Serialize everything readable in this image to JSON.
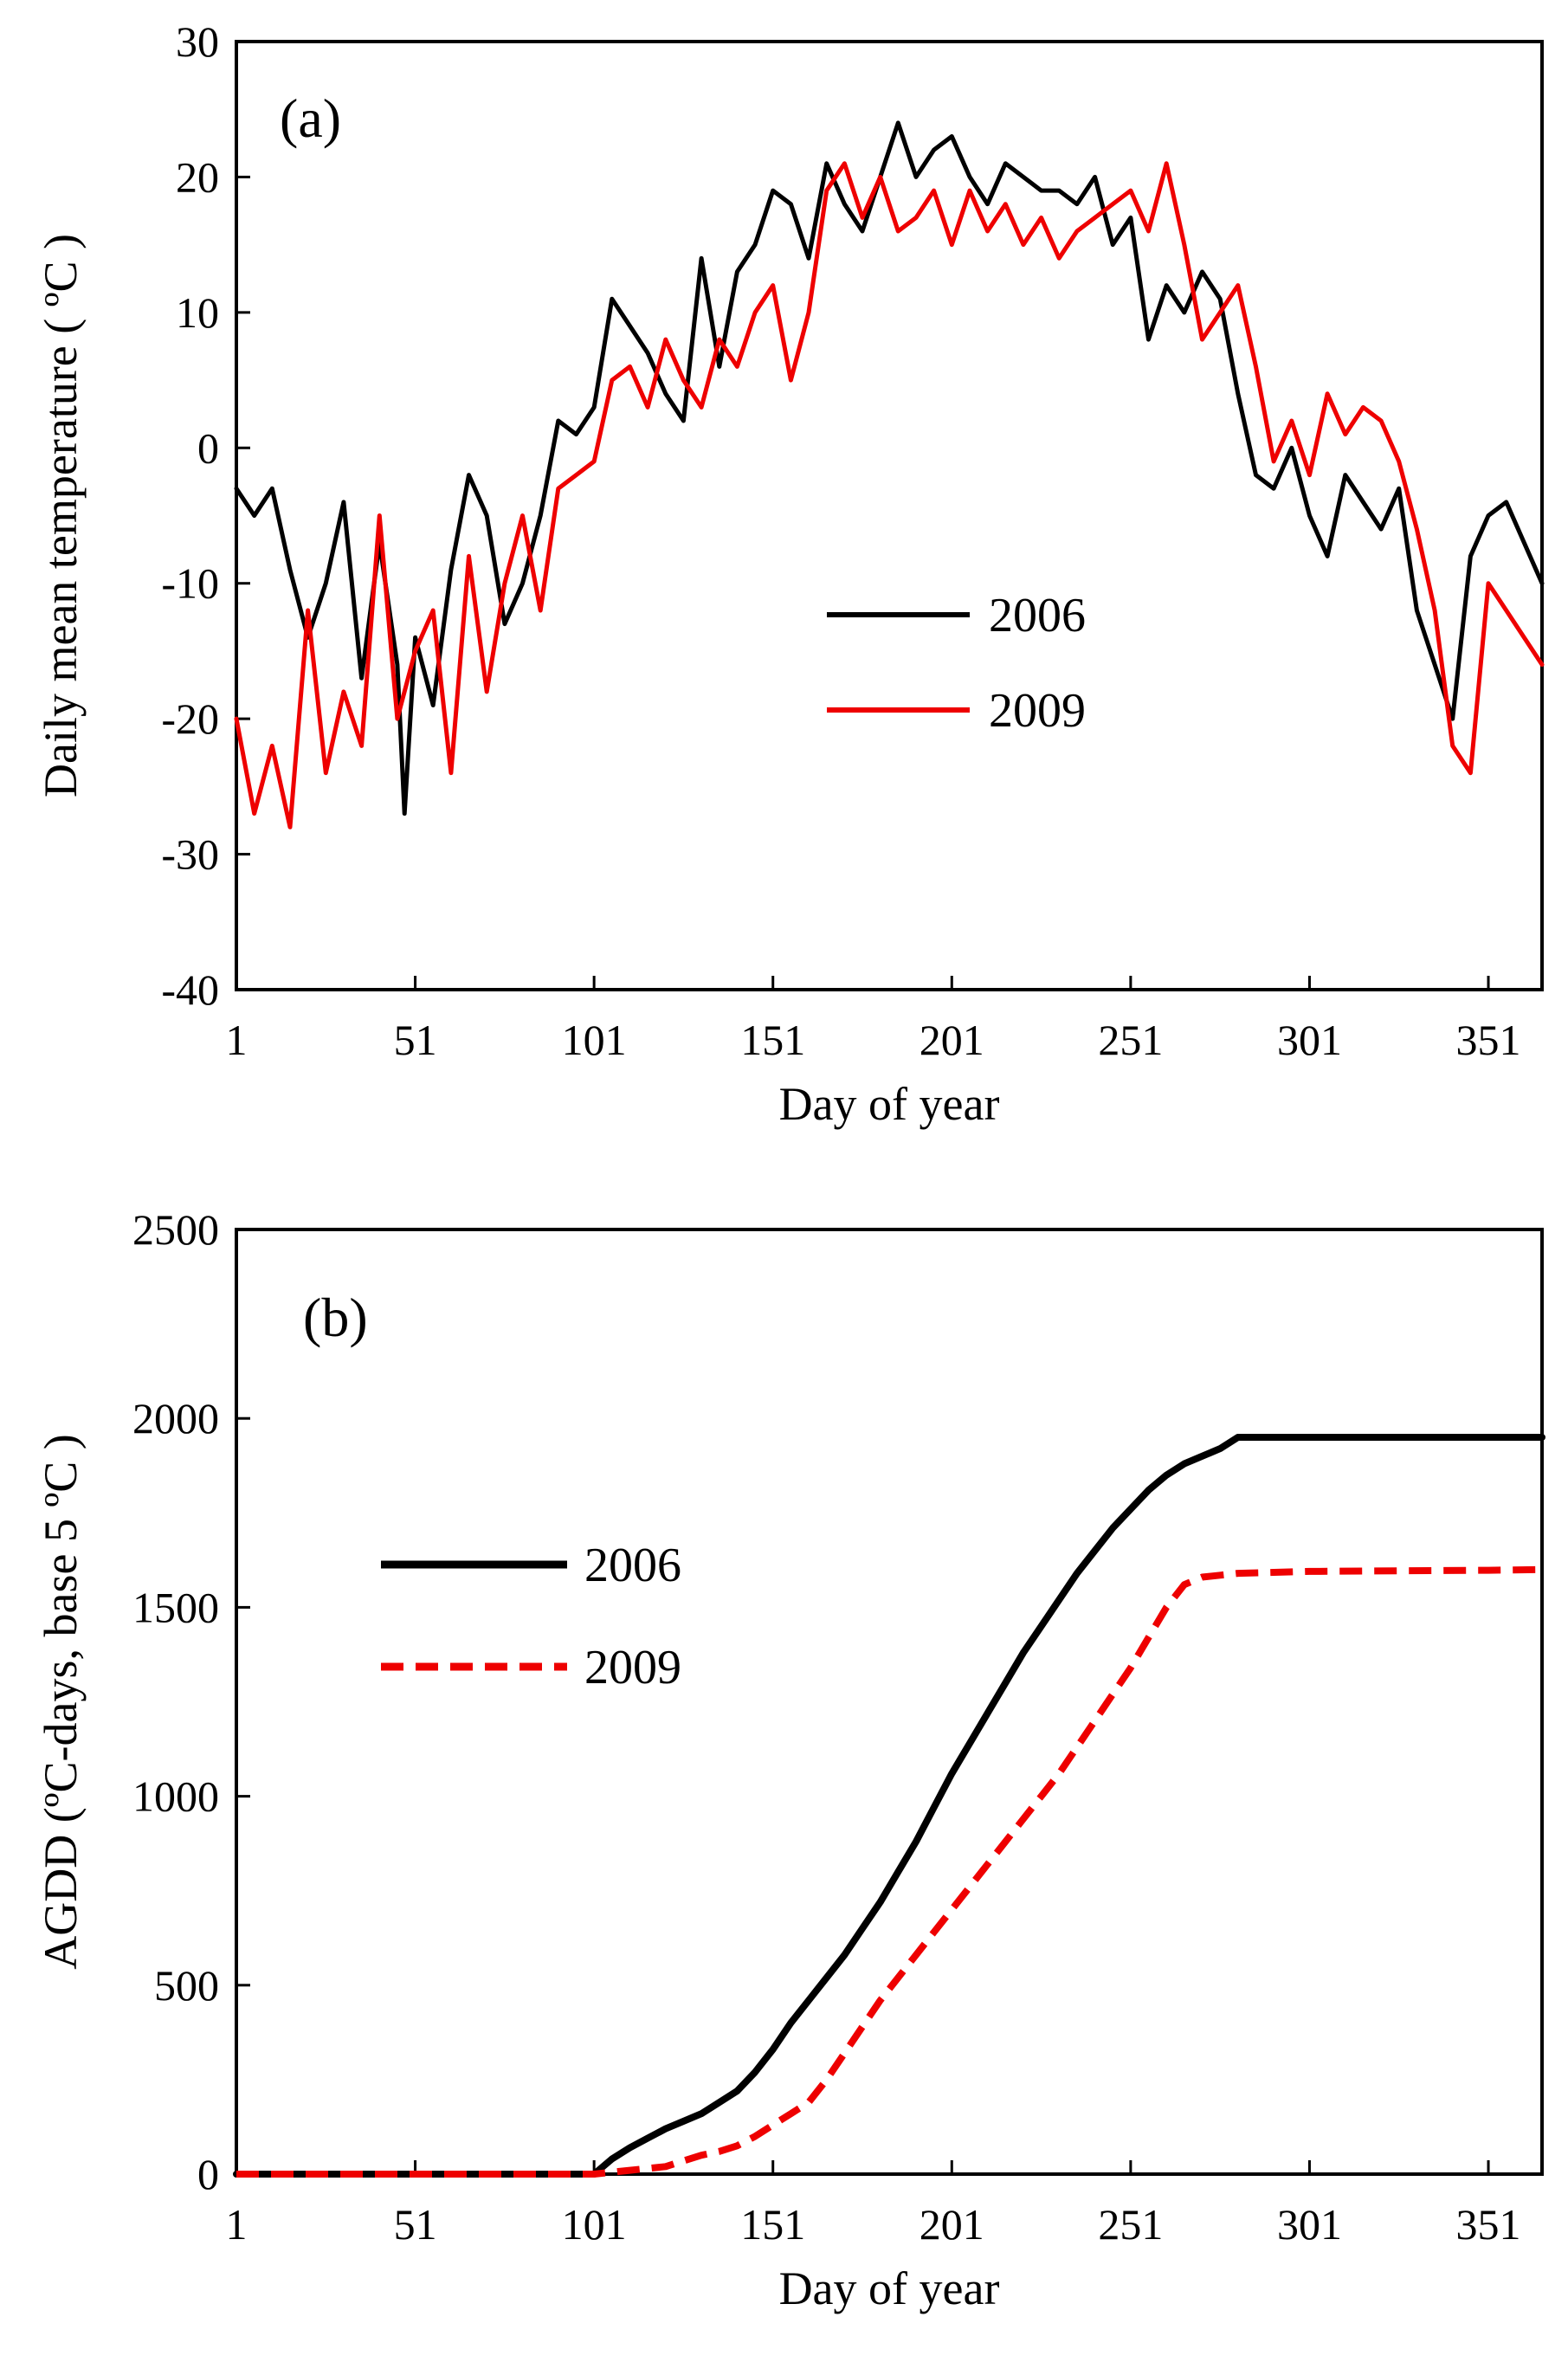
{
  "chart_data": [
    {
      "type": "line",
      "panel_label": "(a)",
      "xlabel": "Day of year",
      "ylabel": "Daily mean temperature ( ºC )",
      "xlim": [
        1,
        366
      ],
      "ylim": [
        -40,
        30
      ],
      "xticks": [
        1,
        51,
        101,
        151,
        201,
        251,
        301,
        351
      ],
      "yticks": [
        -40,
        -30,
        -20,
        -10,
        0,
        10,
        20,
        30
      ],
      "legend_position": "center-right",
      "series": [
        {
          "name": "2006",
          "color": "#000000",
          "dash": "solid",
          "x": [
            1,
            6,
            11,
            16,
            21,
            26,
            31,
            36,
            41,
            46,
            48,
            51,
            56,
            61,
            66,
            71,
            76,
            81,
            86,
            91,
            96,
            101,
            106,
            111,
            116,
            121,
            126,
            131,
            136,
            141,
            146,
            151,
            156,
            161,
            166,
            171,
            176,
            181,
            186,
            191,
            196,
            201,
            206,
            211,
            216,
            221,
            226,
            231,
            236,
            241,
            246,
            251,
            256,
            261,
            266,
            271,
            276,
            281,
            286,
            291,
            296,
            301,
            306,
            311,
            316,
            321,
            326,
            331,
            336,
            341,
            346,
            351,
            356,
            361,
            366
          ],
          "y": [
            -3,
            -5,
            -3,
            -9,
            -14,
            -10,
            -4,
            -17,
            -7,
            -16,
            -27,
            -14,
            -19,
            -9,
            -2,
            -5,
            -13,
            -10,
            -5,
            2,
            1,
            3,
            11,
            9,
            7,
            4,
            2,
            14,
            6,
            13,
            15,
            19,
            18,
            14,
            21,
            18,
            16,
            20,
            24,
            20,
            22,
            23,
            20,
            18,
            21,
            20,
            19,
            19,
            18,
            20,
            15,
            17,
            8,
            12,
            10,
            13,
            11,
            4,
            -2,
            -3,
            0,
            -5,
            -8,
            -2,
            -4,
            -6,
            -3,
            -12,
            -16,
            -20,
            -8,
            -5,
            -4,
            -7,
            -10
          ]
        },
        {
          "name": "2009",
          "color": "#ee0000",
          "dash": "solid",
          "x": [
            1,
            6,
            11,
            16,
            21,
            26,
            31,
            36,
            41,
            46,
            51,
            56,
            61,
            66,
            71,
            76,
            81,
            86,
            91,
            96,
            101,
            106,
            111,
            116,
            121,
            126,
            131,
            136,
            141,
            146,
            151,
            156,
            161,
            166,
            171,
            176,
            181,
            186,
            191,
            196,
            201,
            206,
            211,
            216,
            221,
            226,
            231,
            236,
            241,
            246,
            251,
            256,
            261,
            266,
            271,
            276,
            281,
            286,
            291,
            296,
            301,
            306,
            311,
            316,
            321,
            326,
            331,
            336,
            341,
            346,
            351,
            356,
            361,
            366
          ],
          "y": [
            -20,
            -27,
            -22,
            -28,
            -12,
            -24,
            -18,
            -22,
            -5,
            -20,
            -15,
            -12,
            -24,
            -8,
            -18,
            -10,
            -5,
            -12,
            -3,
            -2,
            -1,
            5,
            6,
            3,
            8,
            5,
            3,
            8,
            6,
            10,
            12,
            5,
            10,
            19,
            21,
            17,
            20,
            16,
            17,
            19,
            15,
            19,
            16,
            18,
            15,
            17,
            14,
            16,
            17,
            18,
            19,
            16,
            21,
            15,
            8,
            10,
            12,
            6,
            -1,
            2,
            -2,
            4,
            1,
            3,
            2,
            -1,
            -6,
            -12,
            -22,
            -24,
            -10,
            -12,
            -14,
            -16
          ]
        }
      ]
    },
    {
      "type": "line",
      "panel_label": "(b)",
      "xlabel": "Day of year",
      "ylabel": "AGDD (ºC-days, base 5 ºC )",
      "xlim": [
        1,
        366
      ],
      "ylim": [
        0,
        2500
      ],
      "xticks": [
        1,
        51,
        101,
        151,
        201,
        251,
        301,
        351
      ],
      "yticks": [
        0,
        500,
        1000,
        1500,
        2000,
        2500
      ],
      "legend_position": "center-left",
      "series": [
        {
          "name": "2006",
          "color": "#000000",
          "dash": "solid",
          "x": [
            1,
            51,
            101,
            106,
            111,
            116,
            121,
            126,
            131,
            136,
            141,
            146,
            151,
            156,
            161,
            166,
            171,
            176,
            181,
            186,
            191,
            196,
            201,
            206,
            211,
            216,
            221,
            226,
            231,
            236,
            241,
            246,
            251,
            256,
            261,
            266,
            271,
            276,
            281,
            301,
            351,
            366
          ],
          "y": [
            0,
            0,
            0,
            40,
            70,
            95,
            120,
            140,
            160,
            190,
            220,
            270,
            330,
            400,
            460,
            520,
            580,
            650,
            720,
            800,
            880,
            970,
            1060,
            1140,
            1220,
            1300,
            1380,
            1450,
            1520,
            1590,
            1650,
            1710,
            1760,
            1810,
            1850,
            1880,
            1900,
            1920,
            1950,
            1950,
            1950,
            1950
          ]
        },
        {
          "name": "2009",
          "color": "#ee0000",
          "dash": "dashed",
          "x": [
            1,
            51,
            101,
            106,
            111,
            116,
            121,
            126,
            131,
            136,
            141,
            146,
            151,
            156,
            161,
            166,
            171,
            176,
            181,
            186,
            191,
            196,
            201,
            206,
            211,
            216,
            221,
            226,
            231,
            236,
            241,
            246,
            251,
            256,
            261,
            266,
            271,
            276,
            281,
            301,
            351,
            366
          ],
          "y": [
            0,
            0,
            0,
            5,
            10,
            15,
            20,
            35,
            50,
            60,
            75,
            100,
            130,
            160,
            190,
            250,
            320,
            390,
            460,
            520,
            580,
            640,
            700,
            760,
            820,
            880,
            940,
            1000,
            1060,
            1130,
            1200,
            1270,
            1340,
            1420,
            1500,
            1560,
            1580,
            1585,
            1590,
            1595,
            1598,
            1600
          ]
        }
      ]
    }
  ]
}
